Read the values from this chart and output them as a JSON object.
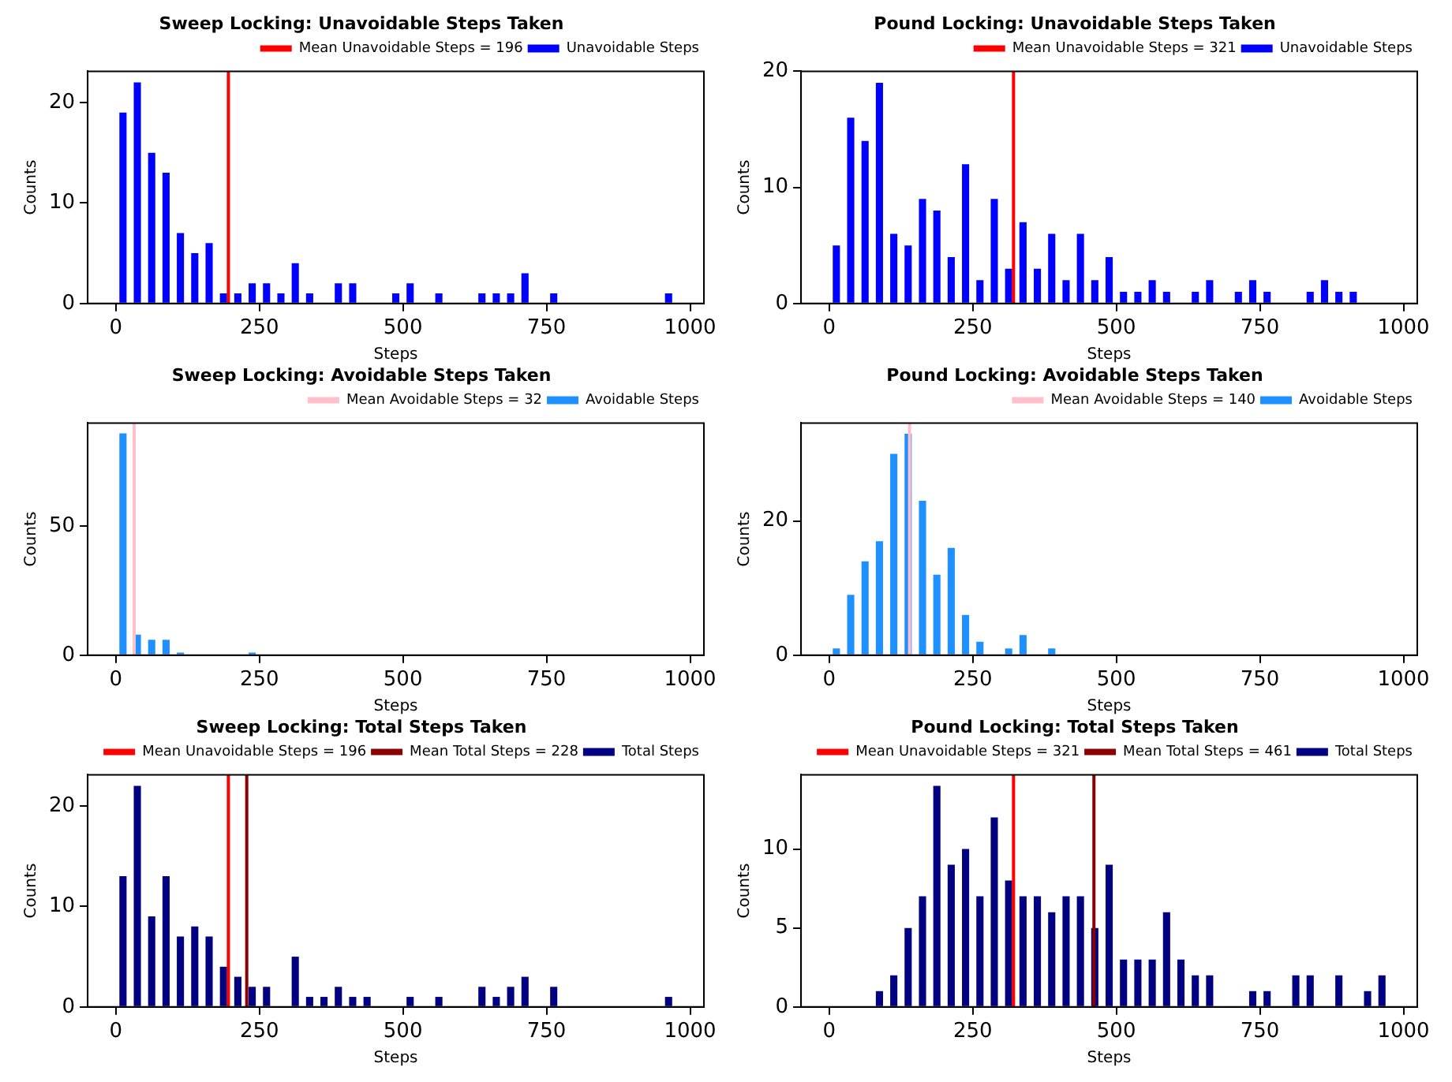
{
  "chart_data": [
    {
      "type": "histogram",
      "title": "Sweep Locking: Unavoidable Steps Taken",
      "xlabel": "Steps",
      "ylabel": "Counts",
      "bins": [
        0,
        25,
        50,
        75,
        100,
        125,
        150,
        175,
        200,
        225,
        250,
        275,
        300,
        325,
        350,
        375,
        400,
        425,
        450,
        475,
        500,
        525,
        550,
        575,
        600,
        625,
        650,
        675,
        700,
        725,
        750,
        775,
        800,
        825,
        850,
        875,
        900,
        925,
        950,
        975
      ],
      "series": [
        {
          "name": "Unavoidable Steps",
          "color": "#0000ff",
          "values": [
            19,
            22,
            15,
            13,
            7,
            5,
            6,
            1,
            1,
            2,
            2,
            1,
            4,
            1,
            0,
            2,
            2,
            0,
            0,
            1,
            2,
            0,
            1,
            0,
            0,
            1,
            1,
            1,
            3,
            0,
            1,
            0,
            0,
            0,
            0,
            0,
            0,
            0,
            1
          ]
        }
      ],
      "ref_lines": [
        {
          "axis": "x",
          "value": 196,
          "label": "Mean Unavoidable Steps = 196",
          "color": "#ff0000"
        }
      ],
      "xlim": [
        -49,
        1024
      ],
      "xticks": [
        0,
        250,
        500,
        750,
        1000
      ],
      "ylim": [
        0,
        23.1
      ],
      "yticks": [
        0,
        10,
        20
      ],
      "legend": "top right"
    },
    {
      "type": "histogram",
      "title": "Pound Locking: Unavoidable Steps Taken",
      "xlabel": "Steps",
      "ylabel": "Counts",
      "bins": [
        0,
        25,
        50,
        75,
        100,
        125,
        150,
        175,
        200,
        225,
        250,
        275,
        300,
        325,
        350,
        375,
        400,
        425,
        450,
        475,
        500,
        525,
        550,
        575,
        600,
        625,
        650,
        675,
        700,
        725,
        750,
        775,
        800,
        825,
        850,
        875,
        900,
        925,
        950,
        975
      ],
      "series": [
        {
          "name": "Unavoidable Steps",
          "color": "#0000ff",
          "values": [
            5,
            16,
            14,
            19,
            6,
            5,
            9,
            8,
            4,
            12,
            2,
            9,
            3,
            7,
            3,
            6,
            2,
            6,
            2,
            4,
            1,
            1,
            2,
            1,
            0,
            1,
            2,
            0,
            1,
            2,
            1,
            0,
            0,
            1,
            2,
            1,
            1,
            0,
            0
          ]
        }
      ],
      "ref_lines": [
        {
          "axis": "x",
          "value": 321,
          "label": "Mean Unavoidable Steps = 321",
          "color": "#ff0000"
        }
      ],
      "xlim": [
        -49,
        1024
      ],
      "xticks": [
        0,
        250,
        500,
        750,
        1000
      ],
      "ylim": [
        0,
        20
      ],
      "yticks": [
        0,
        10,
        20
      ],
      "legend": "top right"
    },
    {
      "type": "histogram",
      "title": "Sweep Locking: Avoidable Steps Taken",
      "xlabel": "Steps",
      "ylabel": "Counts",
      "bins": [
        0,
        25,
        50,
        75,
        100,
        125,
        150,
        175,
        200,
        225,
        250,
        275,
        300,
        325,
        350,
        375,
        400,
        425,
        450,
        475,
        500,
        525,
        550,
        575,
        600,
        625,
        650,
        675,
        700,
        725,
        750,
        775,
        800,
        825,
        850,
        875,
        900,
        925,
        950,
        975
      ],
      "series": [
        {
          "name": "Avoidable Steps",
          "color": "#1e90ff",
          "values": [
            86,
            8,
            6,
            6,
            1,
            0,
            0,
            0,
            0,
            1,
            0,
            0,
            0,
            0,
            0,
            0,
            0,
            0,
            0,
            0,
            0,
            0,
            0,
            0,
            0,
            0,
            0,
            0,
            0,
            0,
            0,
            0,
            0,
            0,
            0,
            0,
            0,
            0,
            0
          ]
        }
      ],
      "ref_lines": [
        {
          "axis": "x",
          "value": 32,
          "label": "Mean Avoidable Steps = 32",
          "color": "#ffc0cb"
        }
      ],
      "xlim": [
        -49,
        1024
      ],
      "xticks": [
        0,
        250,
        500,
        750,
        1000
      ],
      "ylim": [
        0,
        90
      ],
      "yticks": [
        0,
        50
      ],
      "legend": "top right"
    },
    {
      "type": "histogram",
      "title": "Pound Locking: Avoidable Steps Taken",
      "xlabel": "Steps",
      "ylabel": "Counts",
      "bins": [
        0,
        25,
        50,
        75,
        100,
        125,
        150,
        175,
        200,
        225,
        250,
        275,
        300,
        325,
        350,
        375,
        400,
        425,
        450,
        475,
        500,
        525,
        550,
        575,
        600,
        625,
        650,
        675,
        700,
        725,
        750,
        775,
        800,
        825,
        850,
        875,
        900,
        925,
        950,
        975
      ],
      "series": [
        {
          "name": "Avoidable Steps",
          "color": "#1e90ff",
          "values": [
            1,
            9,
            14,
            17,
            30,
            33,
            23,
            12,
            16,
            6,
            2,
            0,
            1,
            3,
            0,
            1,
            0,
            0,
            0,
            0,
            0,
            0,
            0,
            0,
            0,
            0,
            0,
            0,
            0,
            0,
            0,
            0,
            0,
            0,
            0,
            0,
            0,
            0,
            0
          ]
        }
      ],
      "ref_lines": [
        {
          "axis": "x",
          "value": 140,
          "label": "Mean Avoidable Steps = 140",
          "color": "#ffc0cb"
        }
      ],
      "xlim": [
        -49,
        1024
      ],
      "xticks": [
        0,
        250,
        500,
        750,
        1000
      ],
      "ylim": [
        0,
        34.6
      ],
      "yticks": [
        0,
        20
      ],
      "legend": "top right"
    },
    {
      "type": "histogram",
      "title": "Sweep Locking: Total Steps Taken",
      "xlabel": "Steps",
      "ylabel": "Counts",
      "bins": [
        0,
        25,
        50,
        75,
        100,
        125,
        150,
        175,
        200,
        225,
        250,
        275,
        300,
        325,
        350,
        375,
        400,
        425,
        450,
        475,
        500,
        525,
        550,
        575,
        600,
        625,
        650,
        675,
        700,
        725,
        750,
        775,
        800,
        825,
        850,
        875,
        900,
        925,
        950,
        975
      ],
      "series": [
        {
          "name": "Total Steps",
          "color": "#000080",
          "values": [
            13,
            22,
            9,
            13,
            7,
            8,
            7,
            4,
            3,
            2,
            2,
            0,
            5,
            1,
            1,
            2,
            1,
            1,
            0,
            0,
            1,
            0,
            1,
            0,
            0,
            2,
            1,
            2,
            3,
            0,
            2,
            0,
            0,
            0,
            0,
            0,
            0,
            0,
            1
          ]
        }
      ],
      "ref_lines": [
        {
          "axis": "x",
          "value": 196,
          "label": "Mean Unavoidable Steps = 196",
          "color": "#ff0000"
        },
        {
          "axis": "x",
          "value": 228,
          "label": "Mean Total Steps = 228",
          "color": "#8b0000"
        }
      ],
      "xlim": [
        -49,
        1024
      ],
      "xticks": [
        0,
        250,
        500,
        750,
        1000
      ],
      "ylim": [
        0,
        23.1
      ],
      "yticks": [
        0,
        10,
        20
      ],
      "legend": "top right"
    },
    {
      "type": "histogram",
      "title": "Pound Locking: Total Steps Taken",
      "xlabel": "Steps",
      "ylabel": "Counts",
      "bins": [
        0,
        25,
        50,
        75,
        100,
        125,
        150,
        175,
        200,
        225,
        250,
        275,
        300,
        325,
        350,
        375,
        400,
        425,
        450,
        475,
        500,
        525,
        550,
        575,
        600,
        625,
        650,
        675,
        700,
        725,
        750,
        775,
        800,
        825,
        850,
        875,
        900,
        925,
        950,
        975
      ],
      "series": [
        {
          "name": "Total Steps",
          "color": "#000080",
          "values": [
            0,
            0,
            0,
            1,
            2,
            5,
            7,
            14,
            9,
            10,
            7,
            12,
            8,
            7,
            7,
            6,
            7,
            7,
            5,
            9,
            3,
            3,
            3,
            6,
            3,
            2,
            2,
            0,
            0,
            1,
            1,
            0,
            2,
            2,
            0,
            2,
            0,
            1,
            2
          ]
        }
      ],
      "ref_lines": [
        {
          "axis": "x",
          "value": 321,
          "label": "Mean Unavoidable Steps = 321",
          "color": "#ff0000"
        },
        {
          "axis": "x",
          "value": 461,
          "label": "Mean Total Steps = 461",
          "color": "#8b0000"
        }
      ],
      "xlim": [
        -49,
        1024
      ],
      "xticks": [
        0,
        250,
        500,
        750,
        1000
      ],
      "ylim": [
        0,
        14.7
      ],
      "yticks": [
        0,
        5,
        10
      ],
      "legend": "top right"
    }
  ]
}
